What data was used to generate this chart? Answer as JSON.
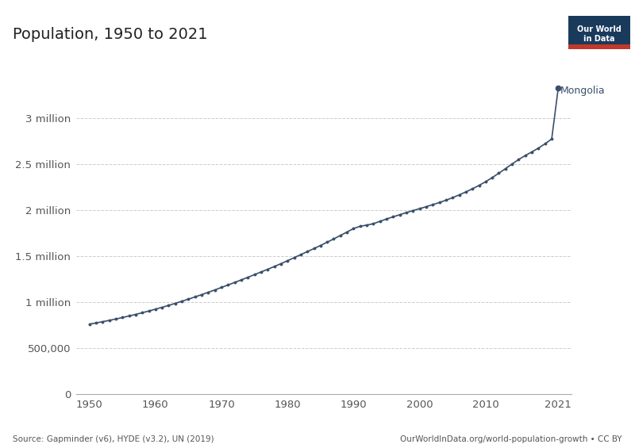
{
  "title": "Population, 1950 to 2021",
  "line_color": "#3a4f6b",
  "background_color": "#ffffff",
  "label": "Mongolia",
  "source_left": "Source: Gapminder (v6), HYDE (v3.2), UN (2019)",
  "source_right": "OurWorldInData.org/world-population-growth • CC BY",
  "owid_box_bg": "#1a3a5c",
  "owid_box_red": "#c0392b",
  "owid_text": "Our World\nin Data",
  "yticks": [
    0,
    500000,
    1000000,
    1500000,
    2000000,
    2500000,
    3000000
  ],
  "ytick_labels": [
    "0",
    "500,000",
    "1 million",
    "1.5 million",
    "2 million",
    "2.5 million",
    "3 million"
  ],
  "xlim": [
    1948,
    2023
  ],
  "ylim": [
    0,
    3600000
  ],
  "years": [
    1950,
    1951,
    1952,
    1953,
    1954,
    1955,
    1956,
    1957,
    1958,
    1959,
    1960,
    1961,
    1962,
    1963,
    1964,
    1965,
    1966,
    1967,
    1968,
    1969,
    1970,
    1971,
    1972,
    1973,
    1974,
    1975,
    1976,
    1977,
    1978,
    1979,
    1980,
    1981,
    1982,
    1983,
    1984,
    1985,
    1986,
    1987,
    1988,
    1989,
    1990,
    1991,
    1992,
    1993,
    1994,
    1995,
    1996,
    1997,
    1998,
    1999,
    2000,
    2001,
    2002,
    2003,
    2004,
    2005,
    2006,
    2007,
    2008,
    2009,
    2010,
    2011,
    2012,
    2013,
    2014,
    2015,
    2016,
    2017,
    2018,
    2019,
    2020,
    2021
  ],
  "population": [
    761000,
    774000,
    788000,
    802000,
    817000,
    833000,
    850000,
    867000,
    885000,
    904000,
    924000,
    944000,
    965000,
    987000,
    1010000,
    1033000,
    1057000,
    1082000,
    1107000,
    1133000,
    1160000,
    1187000,
    1214000,
    1242000,
    1270000,
    1299000,
    1328000,
    1357000,
    1387000,
    1418000,
    1450000,
    1483000,
    1516000,
    1549000,
    1582000,
    1616000,
    1651000,
    1687000,
    1724000,
    1761000,
    1800000,
    1824000,
    1837000,
    1852000,
    1878000,
    1903000,
    1927000,
    1950000,
    1972000,
    1995000,
    2015000,
    2037000,
    2059000,
    2082000,
    2107000,
    2135000,
    2165000,
    2197000,
    2231000,
    2268000,
    2308000,
    2353000,
    2400000,
    2450000,
    2500000,
    2549000,
    2592000,
    2632000,
    2673000,
    2720000,
    2772000,
    3329000
  ]
}
